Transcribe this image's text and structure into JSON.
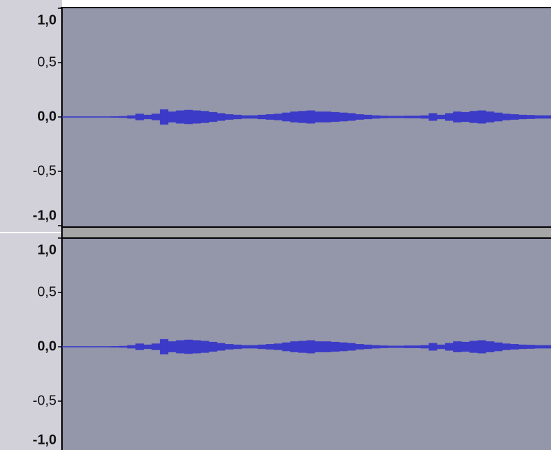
{
  "chart_data": [
    {
      "type": "waveform",
      "color": "#3b3bc8",
      "ylim": [
        -1,
        1
      ],
      "yticks": [
        {
          "value": 1,
          "label": "1,0"
        },
        {
          "value": 0.5,
          "label": "0,5"
        },
        {
          "value": 0,
          "label": "0,0"
        },
        {
          "value": -0.5,
          "label": "-0,5"
        },
        {
          "value": -1,
          "label": "-1,0"
        }
      ],
      "values": [
        0.004,
        0.004,
        0.004,
        0.004,
        0.004,
        0.004,
        0.006,
        0.008,
        0.015,
        0.03,
        0.02,
        0.03,
        0.07,
        0.05,
        0.06,
        0.065,
        0.06,
        0.055,
        0.045,
        0.035,
        0.025,
        0.02,
        0.015,
        0.015,
        0.02,
        0.025,
        0.03,
        0.04,
        0.05,
        0.055,
        0.06,
        0.05,
        0.05,
        0.045,
        0.04,
        0.035,
        0.025,
        0.02,
        0.015,
        0.012,
        0.01,
        0.01,
        0.012,
        0.012,
        0.015,
        0.035,
        0.02,
        0.035,
        0.05,
        0.045,
        0.055,
        0.06,
        0.05,
        0.04,
        0.03,
        0.025,
        0.02,
        0.018,
        0.015,
        0.015
      ]
    },
    {
      "type": "waveform",
      "color": "#3b3bc8",
      "ylim": [
        -1,
        1
      ],
      "yticks": [
        {
          "value": 1,
          "label": "1,0"
        },
        {
          "value": 0.5,
          "label": "0,5"
        },
        {
          "value": 0,
          "label": "0,0"
        },
        {
          "value": -0.5,
          "label": "-0,5"
        },
        {
          "value": -1,
          "label": "-1,0"
        }
      ],
      "values": [
        0.004,
        0.004,
        0.004,
        0.004,
        0.004,
        0.004,
        0.006,
        0.008,
        0.015,
        0.03,
        0.02,
        0.03,
        0.07,
        0.05,
        0.06,
        0.065,
        0.06,
        0.055,
        0.045,
        0.035,
        0.025,
        0.02,
        0.015,
        0.015,
        0.02,
        0.025,
        0.03,
        0.04,
        0.05,
        0.055,
        0.06,
        0.05,
        0.05,
        0.045,
        0.04,
        0.035,
        0.025,
        0.02,
        0.015,
        0.012,
        0.01,
        0.01,
        0.012,
        0.012,
        0.015,
        0.035,
        0.02,
        0.035,
        0.05,
        0.045,
        0.055,
        0.06,
        0.05,
        0.04,
        0.03,
        0.025,
        0.02,
        0.018,
        0.015,
        0.015
      ]
    }
  ]
}
